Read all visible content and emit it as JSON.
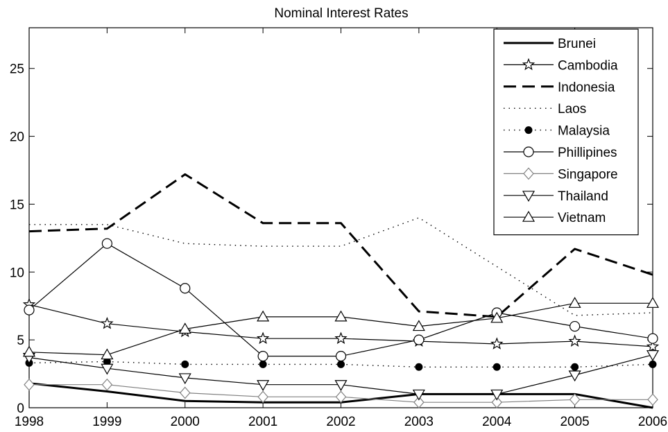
{
  "chart_data": {
    "type": "line",
    "title": "Nominal Interest Rates",
    "xlabel": "",
    "ylabel": "",
    "x": [
      1998,
      1999,
      2000,
      2001,
      2002,
      2003,
      2004,
      2005,
      2006
    ],
    "xlim": [
      1998,
      2006
    ],
    "ylim": [
      0,
      28
    ],
    "yticks": [
      0,
      5,
      10,
      15,
      20,
      25
    ],
    "grid": false,
    "legend_position": "top-right",
    "series": [
      {
        "name": "Brunei",
        "style": "solid-thick",
        "marker": "none",
        "color": "#000000",
        "values": [
          1.8,
          1.2,
          0.5,
          0.4,
          0.4,
          1.0,
          1.0,
          1.0,
          0.0
        ]
      },
      {
        "name": "Cambodia",
        "style": "solid",
        "marker": "star",
        "color": "#000000",
        "values": [
          7.6,
          6.2,
          5.6,
          5.1,
          5.1,
          4.9,
          4.7,
          4.9,
          4.5
        ]
      },
      {
        "name": "Indonesia",
        "style": "dashed-thick",
        "marker": "none",
        "color": "#000000",
        "values": [
          13.0,
          13.2,
          17.2,
          13.6,
          13.6,
          7.1,
          6.7,
          11.7,
          9.8
        ]
      },
      {
        "name": "Laos",
        "style": "dotted",
        "marker": "none",
        "color": "#000000",
        "values": [
          13.5,
          13.5,
          12.1,
          11.9,
          11.9,
          14.0,
          10.4,
          6.8,
          7.0
        ]
      },
      {
        "name": "Malaysia",
        "style": "dotted",
        "marker": "dot",
        "color": "#000000",
        "values": [
          3.3,
          3.4,
          3.2,
          3.2,
          3.2,
          3.0,
          3.0,
          3.0,
          3.2
        ]
      },
      {
        "name": "Phillipines",
        "style": "solid",
        "marker": "circle",
        "color": "#000000",
        "values": [
          7.2,
          12.1,
          8.8,
          3.8,
          3.8,
          5.0,
          7.0,
          6.0,
          5.1
        ]
      },
      {
        "name": "Singapore",
        "style": "solid",
        "marker": "diamond",
        "color": "#808080",
        "values": [
          1.7,
          1.7,
          1.1,
          0.8,
          0.8,
          0.4,
          0.4,
          0.6,
          0.6
        ]
      },
      {
        "name": "Thailand",
        "style": "solid",
        "marker": "triangle-down",
        "color": "#000000",
        "values": [
          3.7,
          2.9,
          2.2,
          1.7,
          1.7,
          1.0,
          1.0,
          2.4,
          3.9
        ]
      },
      {
        "name": "Vietnam",
        "style": "solid",
        "marker": "triangle-up",
        "color": "#000000",
        "values": [
          4.1,
          3.9,
          5.8,
          6.7,
          6.7,
          6.0,
          6.6,
          7.7,
          7.7
        ]
      }
    ]
  }
}
